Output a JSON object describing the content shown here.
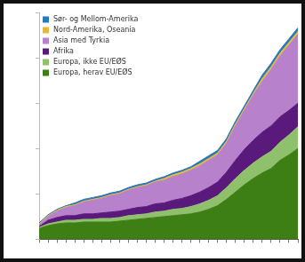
{
  "chart_data": {
    "type": "area",
    "stacked": true,
    "categories": [
      null,
      null,
      null,
      null,
      null,
      null,
      null,
      null,
      null,
      null,
      null,
      null,
      null,
      null,
      null,
      null,
      null,
      null,
      null,
      null,
      null,
      null,
      null,
      null,
      null,
      null,
      null,
      null,
      null,
      null
    ],
    "ylim": [
      0,
      250
    ],
    "yticks": [
      0,
      50,
      100,
      150,
      200,
      250
    ],
    "grid": false,
    "tick_labels": false,
    "legend": "top-left",
    "series": [
      {
        "name": "Europa, herav EU/EØS",
        "color": "#3d7f14",
        "values": [
          12,
          15,
          17,
          18,
          18,
          19,
          19,
          19,
          19,
          20,
          21,
          22,
          23,
          24,
          25,
          26,
          27,
          28,
          30,
          33,
          37,
          44,
          52,
          60,
          67,
          73,
          78,
          87,
          93,
          100
        ]
      },
      {
        "name": "Europa, ikke EU/EØS",
        "color": "#8fc06c",
        "values": [
          1,
          2,
          2,
          3,
          3,
          3,
          3,
          4,
          4,
          4,
          5,
          5,
          5,
          6,
          6,
          7,
          7,
          8,
          9,
          10,
          11,
          13,
          15,
          16,
          17,
          18,
          19,
          20,
          22,
          24
        ]
      },
      {
        "name": "Afrika",
        "color": "#5a1a7c",
        "values": [
          1,
          4,
          5,
          5,
          5,
          6,
          6,
          6,
          7,
          7,
          7,
          8,
          8,
          9,
          9,
          10,
          11,
          12,
          13,
          14,
          15,
          17,
          20,
          23,
          25,
          27,
          28,
          28,
          27,
          26
        ]
      },
      {
        "name": "Asia med Tyrkia",
        "color": "#b881cb",
        "values": [
          2,
          4,
          7,
          9,
          11,
          13,
          15,
          16,
          18,
          19,
          21,
          22,
          23,
          24,
          25,
          26,
          27,
          28,
          29,
          30,
          30,
          32,
          38,
          43,
          50,
          56,
          62,
          67,
          72,
          76
        ]
      },
      {
        "name": "Nord-Amerika, Oseania",
        "color": "#e6b83c",
        "values": [
          1,
          1,
          1,
          1,
          1,
          1,
          1,
          1,
          1,
          1,
          1,
          1,
          1,
          1,
          2,
          2,
          2,
          2,
          2,
          2,
          2,
          2,
          2,
          2,
          2,
          3,
          3,
          3,
          3,
          3
        ]
      },
      {
        "name": "Sør- og Mellom-Amerika",
        "color": "#2a78b8",
        "values": [
          1,
          1,
          1,
          1,
          2,
          2,
          2,
          2,
          2,
          2,
          2,
          2,
          2,
          2,
          2,
          2,
          2,
          2,
          3,
          3,
          3,
          3,
          3,
          3,
          3,
          4,
          4,
          4,
          4,
          4
        ]
      }
    ]
  }
}
